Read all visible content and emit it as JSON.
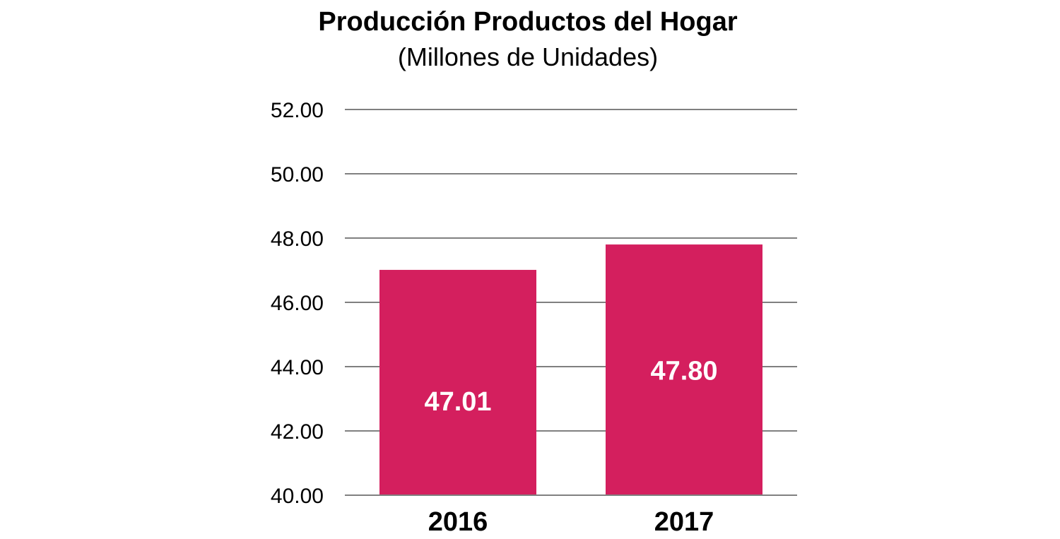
{
  "chart_data": {
    "type": "bar",
    "title": "Producción Productos del Hogar",
    "subtitle": "(Millones de Unidades)",
    "categories": [
      "2016",
      "2017"
    ],
    "values": [
      47.01,
      47.8
    ],
    "data_labels": [
      "47.01",
      "47.80"
    ],
    "ylim": [
      40,
      52
    ],
    "yticks": [
      40,
      42,
      44,
      46,
      48,
      50,
      52
    ],
    "ytick_labels": [
      "40.00",
      "42.00",
      "44.00",
      "46.00",
      "48.00",
      "50.00",
      "52.00"
    ],
    "xlabel": "",
    "ylabel": "",
    "grid": true,
    "legend": "none",
    "bar_color": "#D41F5E",
    "grid_color": "#808080"
  }
}
